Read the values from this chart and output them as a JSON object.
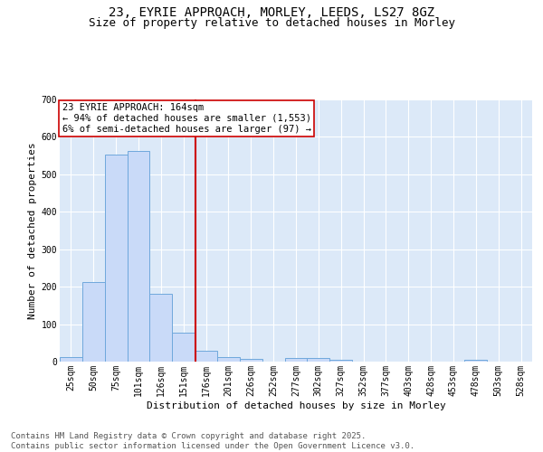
{
  "title_line1": "23, EYRIE APPROACH, MORLEY, LEEDS, LS27 8GZ",
  "title_line2": "Size of property relative to detached houses in Morley",
  "xlabel": "Distribution of detached houses by size in Morley",
  "ylabel": "Number of detached properties",
  "bar_color": "#c9daf8",
  "bar_edge_color": "#6fa8dc",
  "categories": [
    "25sqm",
    "50sqm",
    "75sqm",
    "101sqm",
    "126sqm",
    "151sqm",
    "176sqm",
    "201sqm",
    "226sqm",
    "252sqm",
    "277sqm",
    "302sqm",
    "327sqm",
    "352sqm",
    "377sqm",
    "403sqm",
    "428sqm",
    "453sqm",
    "478sqm",
    "503sqm",
    "528sqm"
  ],
  "values": [
    12,
    212,
    553,
    562,
    180,
    77,
    28,
    12,
    8,
    0,
    9,
    9,
    6,
    0,
    0,
    0,
    0,
    0,
    5,
    0,
    0
  ],
  "vline_x": 5.52,
  "vline_color": "#cc0000",
  "annotation_text": "23 EYRIE APPROACH: 164sqm\n← 94% of detached houses are smaller (1,553)\n6% of semi-detached houses are larger (97) →",
  "annotation_box_color": "#ffffff",
  "annotation_box_edge_color": "#cc0000",
  "ylim": [
    0,
    700
  ],
  "yticks": [
    0,
    100,
    200,
    300,
    400,
    500,
    600,
    700
  ],
  "footer_text": "Contains HM Land Registry data © Crown copyright and database right 2025.\nContains public sector information licensed under the Open Government Licence v3.0.",
  "bg_color": "#dce9f8",
  "title_fontsize": 10,
  "subtitle_fontsize": 9,
  "axis_label_fontsize": 8,
  "tick_fontsize": 7,
  "annotation_fontsize": 7.5,
  "footer_fontsize": 6.5
}
